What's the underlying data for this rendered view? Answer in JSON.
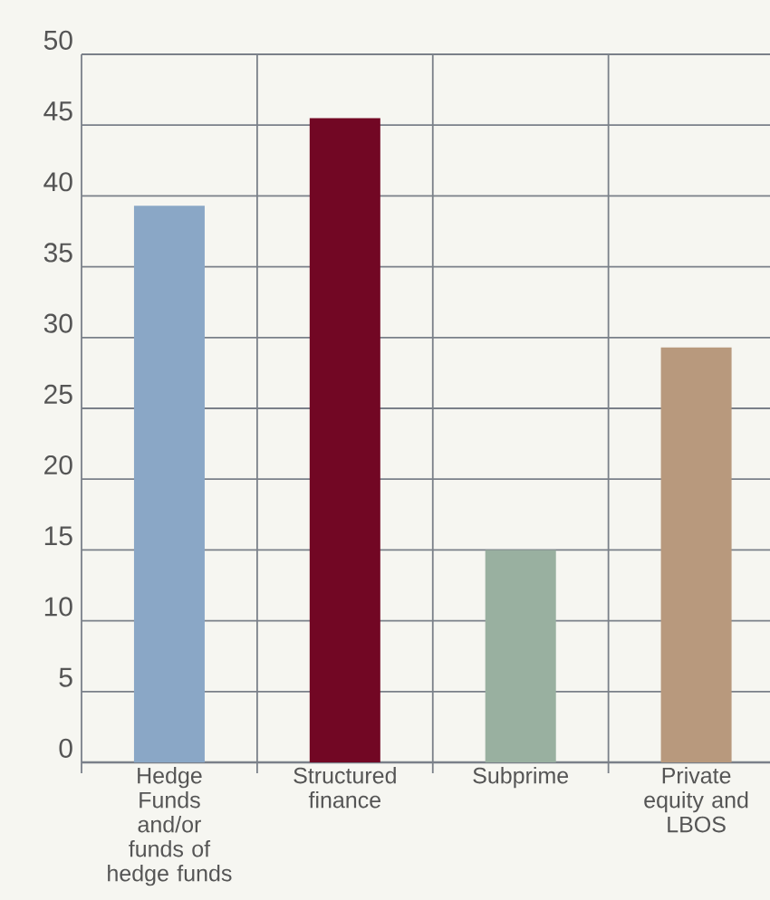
{
  "chart_data": {
    "type": "bar",
    "categories": [
      "Hedge Funds and/or funds of hedge funds",
      "Structured finance",
      "Subprime",
      "Private equity and LBOS"
    ],
    "values": [
      39.3,
      45.5,
      15,
      29.3
    ],
    "colors": [
      "#8aa7c6",
      "#720724",
      "#99b0a0",
      "#b8997d"
    ],
    "ylim": [
      0,
      50
    ],
    "yticks": [
      0,
      5,
      10,
      15,
      20,
      25,
      30,
      35,
      40,
      45,
      50
    ],
    "grid": true
  }
}
